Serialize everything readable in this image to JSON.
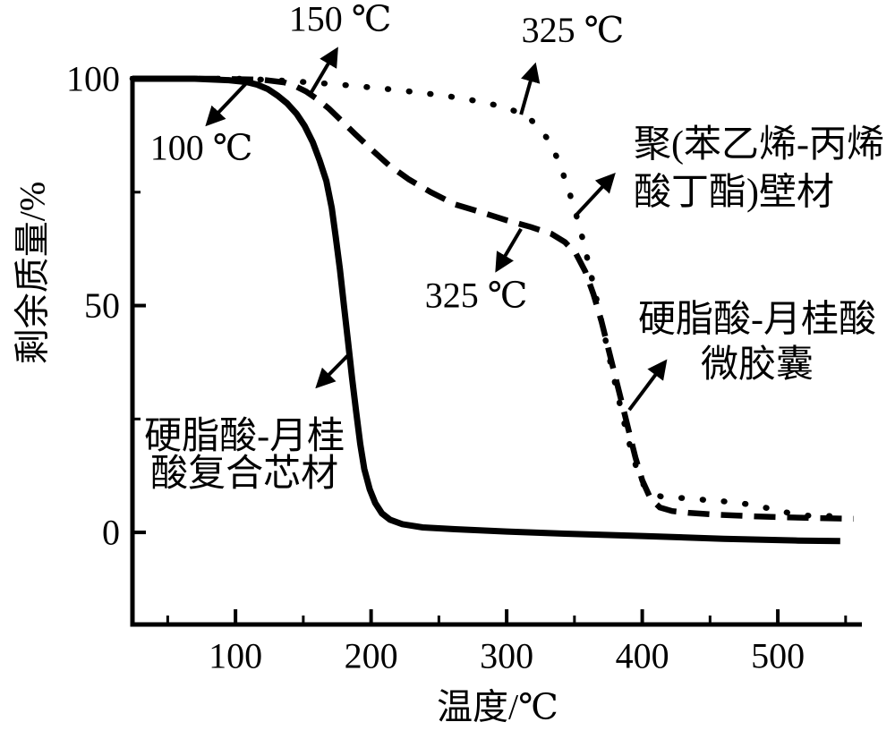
{
  "figure": {
    "background": "#ffffff",
    "ink": "#000000"
  },
  "chart_data": {
    "type": "line",
    "title": "",
    "xlabel": "温度/℃",
    "ylabel": "剩余质量/%",
    "xlim": [
      24,
      562
    ],
    "ylim": [
      -20.3,
      100.6
    ],
    "grid": false,
    "legend_position": "none (curves labeled by on-plot annotations)",
    "x_ticks": {
      "major": [
        100,
        200,
        300,
        400,
        500
      ],
      "minor": [
        50,
        150,
        250,
        350,
        450,
        550
      ]
    },
    "y_ticks": {
      "major": [
        0,
        50,
        100
      ],
      "minor": [
        25,
        75
      ]
    },
    "series": [
      {
        "id": "core-material",
        "name": "硬脂酸-月桂酸复合芯材",
        "line_style": "solid",
        "points": [
          [
            24,
            100
          ],
          [
            70,
            100
          ],
          [
            95,
            99.7
          ],
          [
            108,
            99.3
          ],
          [
            116,
            98.7
          ],
          [
            124,
            97.7
          ],
          [
            131,
            96.3
          ],
          [
            138,
            94.6
          ],
          [
            145,
            92.3
          ],
          [
            151,
            89.6
          ],
          [
            157,
            86
          ],
          [
            162,
            82
          ],
          [
            167,
            77.5
          ],
          [
            171,
            71.5
          ],
          [
            174,
            65
          ],
          [
            177,
            58
          ],
          [
            180,
            50
          ],
          [
            183,
            42
          ],
          [
            186,
            34
          ],
          [
            189,
            26.5
          ],
          [
            192,
            19.5
          ],
          [
            195,
            14
          ],
          [
            199,
            9.5
          ],
          [
            203,
            6.5
          ],
          [
            208,
            4.2
          ],
          [
            214,
            2.8
          ],
          [
            223,
            1.8
          ],
          [
            238,
            1.1
          ],
          [
            262,
            0.7
          ],
          [
            300,
            0.2
          ],
          [
            345,
            -0.3
          ],
          [
            400,
            -0.8
          ],
          [
            460,
            -1.4
          ],
          [
            515,
            -1.8
          ],
          [
            546,
            -1.9
          ]
        ]
      },
      {
        "id": "microcapsules",
        "name": "硬脂酸-月桂酸微胶囊",
        "line_style": "dashed",
        "points": [
          [
            24,
            100
          ],
          [
            85,
            100
          ],
          [
            120,
            99.8
          ],
          [
            136,
            99.2
          ],
          [
            144,
            98.4
          ],
          [
            152,
            97.2
          ],
          [
            160,
            95.6
          ],
          [
            169,
            93.4
          ],
          [
            178,
            90.8
          ],
          [
            188,
            87.9
          ],
          [
            200,
            84.5
          ],
          [
            213,
            81
          ],
          [
            228,
            77.8
          ],
          [
            244,
            75
          ],
          [
            262,
            72.3
          ],
          [
            280,
            70.7
          ],
          [
            300,
            68.8
          ],
          [
            318,
            67.3
          ],
          [
            333,
            65.8
          ],
          [
            343,
            64
          ],
          [
            351,
            61.5
          ],
          [
            358,
            57.5
          ],
          [
            364,
            52.5
          ],
          [
            370,
            46.5
          ],
          [
            375,
            40.5
          ],
          [
            380,
            34.5
          ],
          [
            385,
            28.5
          ],
          [
            390,
            22.5
          ],
          [
            395,
            16.5
          ],
          [
            400,
            11.5
          ],
          [
            406,
            7.5
          ],
          [
            413,
            5.5
          ],
          [
            422,
            4.7
          ],
          [
            435,
            4.3
          ],
          [
            455,
            3.9
          ],
          [
            485,
            3.5
          ],
          [
            520,
            3.2
          ],
          [
            556,
            3.0
          ]
        ]
      },
      {
        "id": "wall-material",
        "name": "聚(苯乙烯-丙烯酸丁酯)壁材",
        "line_style": "dotted",
        "points": [
          [
            24,
            100
          ],
          [
            105,
            100
          ],
          [
            135,
            99.6
          ],
          [
            160,
            99.1
          ],
          [
            185,
            98.5
          ],
          [
            210,
            97.8
          ],
          [
            235,
            97
          ],
          [
            258,
            96.1
          ],
          [
            278,
            95.1
          ],
          [
            295,
            94
          ],
          [
            308,
            92.7
          ],
          [
            317,
            91.2
          ],
          [
            324,
            89.2
          ],
          [
            330,
            86.8
          ],
          [
            336,
            83.4
          ],
          [
            341,
            79.6
          ],
          [
            346,
            75.2
          ],
          [
            351,
            70.3
          ],
          [
            356,
            64.8
          ],
          [
            361,
            58.5
          ],
          [
            366,
            51.8
          ],
          [
            371,
            45
          ],
          [
            376,
            38.2
          ],
          [
            381,
            31.5
          ],
          [
            386,
            25
          ],
          [
            391,
            19
          ],
          [
            396,
            14
          ],
          [
            401,
            10.5
          ],
          [
            407,
            8.6
          ],
          [
            414,
            7.9
          ],
          [
            428,
            7.6
          ],
          [
            445,
            7.2
          ],
          [
            462,
            6.8
          ],
          [
            478,
            6.2
          ],
          [
            495,
            5.2
          ],
          [
            508,
            4.3
          ],
          [
            522,
            3.7
          ],
          [
            538,
            3.6
          ],
          [
            553,
            3.7
          ]
        ]
      }
    ],
    "annotations": [
      {
        "id": "temp-100",
        "lines": [
          "100 ℃"
        ],
        "x": 74.9,
        "y": [
          84.8
        ],
        "align": "center",
        "size": "temp",
        "arrow": [
          107.9,
          99.0,
          80.2,
          90.3
        ]
      },
      {
        "id": "temp-150",
        "lines": [
          "150 ℃"
        ],
        "x": 177.2,
        "y": [
          113.2
        ],
        "align": "center",
        "size": "temp",
        "arrow": [
          154.1,
          96.1,
          173.9,
          106.1
        ]
      },
      {
        "id": "temp-325-wall",
        "lines": [
          "325 ℃"
        ],
        "x": 348.8,
        "y": [
          110.8
        ],
        "align": "center",
        "size": "temp",
        "arrow": [
          310.6,
          92.1,
          320.5,
          102.6
        ]
      },
      {
        "id": "temp-325-capsule",
        "lines": [
          "325 ℃"
        ],
        "x": 277.6,
        "y": [
          52.3
        ],
        "align": "center",
        "size": "temp",
        "arrow": [
          310.6,
          66.9,
          293.4,
          58.2
        ]
      },
      {
        "id": "label-wall-material",
        "lines": [
          "聚(苯乙烯-丙烯",
          "酸丁酯)壁材"
        ],
        "x": 393.7,
        "y": [
          85.4,
          74.9
        ],
        "align": "left",
        "size": "cjk",
        "arrow": [
          350.8,
          69.8,
          377.9,
          78.5
        ]
      },
      {
        "id": "label-microcapsules",
        "lines": [
          "硬脂酸-月桂酸",
          "微胶囊"
        ],
        "x": 484.8,
        "y": [
          46.9,
          36.9
        ],
        "align": "center",
        "size": "cjk",
        "arrow": [
          390.4,
          27.0,
          416.2,
          37.3
        ]
      },
      {
        "id": "label-core-material",
        "lines": [
          "硬脂酸-月桂",
          "酸复合芯材"
        ],
        "x": 106.6,
        "y": [
          21.1,
          12.8
        ],
        "align": "center",
        "size": "cjk",
        "arrow": [
          182.5,
          38.9,
          161.4,
          32.5
        ]
      }
    ]
  }
}
